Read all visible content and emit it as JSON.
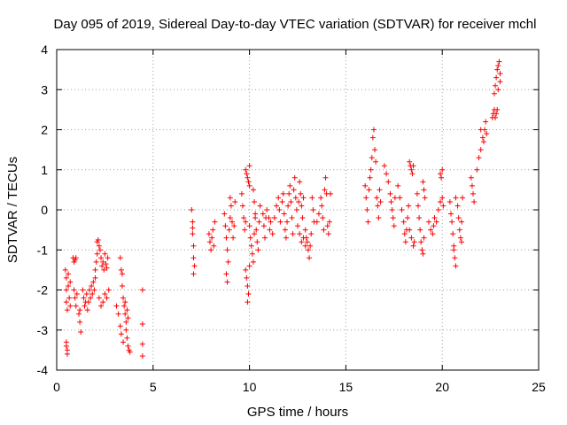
{
  "chart_data": {
    "type": "scatter",
    "title": "Day 095 of 2019, Sidereal Day-to-day VTEC variation (SDTVAR) for receiver mchl",
    "xlabel": "GPS time / hours",
    "ylabel": "SDTVAR / TECUs",
    "xlim": [
      0,
      25
    ],
    "ylim": [
      -4,
      4
    ],
    "xticks": [
      "0",
      "5",
      "10",
      "15",
      "20",
      "25"
    ],
    "yticks": [
      "-4",
      "-3",
      "-2",
      "-1",
      "0",
      "1",
      "2",
      "3",
      "4"
    ],
    "grid": true,
    "marker": "plus",
    "color": "#ff0000",
    "series": [
      {
        "name": "SDTVAR",
        "points": [
          [
            0.45,
            -1.5
          ],
          [
            0.5,
            -1.7
          ],
          [
            0.5,
            -2.0
          ],
          [
            0.5,
            -2.3
          ],
          [
            0.55,
            -2.5
          ],
          [
            0.5,
            -3.3
          ],
          [
            0.55,
            -3.5
          ],
          [
            0.55,
            -3.6
          ],
          [
            0.5,
            -3.4
          ],
          [
            0.6,
            -1.6
          ],
          [
            0.6,
            -1.9
          ],
          [
            0.65,
            -2.2
          ],
          [
            0.7,
            -2.4
          ],
          [
            0.7,
            -1.8
          ],
          [
            0.85,
            -1.2
          ],
          [
            0.9,
            -1.3
          ],
          [
            0.95,
            -1.25
          ],
          [
            1.0,
            -1.2
          ],
          [
            0.9,
            -2.0
          ],
          [
            0.95,
            -2.2
          ],
          [
            1.0,
            -2.4
          ],
          [
            1.05,
            -2.1
          ],
          [
            1.15,
            -2.6
          ],
          [
            1.2,
            -2.8
          ],
          [
            1.25,
            -3.05
          ],
          [
            1.2,
            -2.5
          ],
          [
            1.35,
            -2.0
          ],
          [
            1.4,
            -2.2
          ],
          [
            1.45,
            -2.4
          ],
          [
            1.5,
            -2.3
          ],
          [
            1.55,
            -2.1
          ],
          [
            1.6,
            -2.5
          ],
          [
            1.65,
            -2.3
          ],
          [
            1.7,
            -2.0
          ],
          [
            1.75,
            -2.2
          ],
          [
            1.8,
            -1.9
          ],
          [
            1.85,
            -2.1
          ],
          [
            1.9,
            -1.8
          ],
          [
            1.95,
            -2.0
          ],
          [
            2.0,
            -1.7
          ],
          [
            2.0,
            -1.5
          ],
          [
            2.05,
            -1.3
          ],
          [
            2.1,
            -1.1
          ],
          [
            2.1,
            -0.8
          ],
          [
            2.15,
            -0.75
          ],
          [
            2.2,
            -0.9
          ],
          [
            2.25,
            -1.0
          ],
          [
            2.3,
            -1.2
          ],
          [
            2.35,
            -1.4
          ],
          [
            2.4,
            -1.3
          ],
          [
            2.45,
            -1.5
          ],
          [
            2.5,
            -1.1
          ],
          [
            2.55,
            -1.35
          ],
          [
            2.6,
            -1.45
          ],
          [
            2.65,
            -1.2
          ],
          [
            2.2,
            -2.2
          ],
          [
            2.3,
            -2.4
          ],
          [
            2.4,
            -2.3
          ],
          [
            2.5,
            -2.1
          ],
          [
            2.6,
            -2.2
          ],
          [
            2.7,
            -2.0
          ],
          [
            3.3,
            -1.2
          ],
          [
            3.35,
            -1.5
          ],
          [
            3.4,
            -1.6
          ],
          [
            3.4,
            -1.9
          ],
          [
            3.45,
            -2.2
          ],
          [
            3.5,
            -2.4
          ],
          [
            3.55,
            -2.6
          ],
          [
            3.6,
            -2.8
          ],
          [
            3.6,
            -3.0
          ],
          [
            3.65,
            -3.2
          ],
          [
            3.7,
            -3.4
          ],
          [
            3.75,
            -3.5
          ],
          [
            3.8,
            -3.55
          ],
          [
            3.1,
            -2.4
          ],
          [
            3.2,
            -2.6
          ],
          [
            3.3,
            -2.9
          ],
          [
            3.35,
            -3.1
          ],
          [
            3.45,
            -3.3
          ],
          [
            3.55,
            -2.3
          ],
          [
            3.65,
            -2.5
          ],
          [
            3.7,
            -2.7
          ],
          [
            4.45,
            -2.0
          ],
          [
            4.45,
            -2.85
          ],
          [
            4.45,
            -3.35
          ],
          [
            4.45,
            -3.65
          ],
          [
            7.0,
            0.0
          ],
          [
            7.05,
            -0.3
          ],
          [
            7.05,
            -0.6
          ],
          [
            7.1,
            -0.9
          ],
          [
            7.1,
            -1.2
          ],
          [
            7.15,
            -1.4
          ],
          [
            7.1,
            -1.6
          ],
          [
            7.05,
            -0.45
          ],
          [
            7.9,
            -0.6
          ],
          [
            7.95,
            -0.8
          ],
          [
            8.0,
            -1.0
          ],
          [
            8.05,
            -0.7
          ],
          [
            8.1,
            -0.5
          ],
          [
            8.15,
            -0.9
          ],
          [
            8.2,
            -0.3
          ],
          [
            8.7,
            -0.1
          ],
          [
            8.75,
            -0.4
          ],
          [
            8.8,
            -0.7
          ],
          [
            8.85,
            -1.0
          ],
          [
            8.9,
            -1.3
          ],
          [
            8.95,
            -0.5
          ],
          [
            9.0,
            -0.2
          ],
          [
            9.0,
            0.3
          ],
          [
            9.05,
            0.1
          ],
          [
            9.1,
            -0.3
          ],
          [
            9.15,
            -0.7
          ],
          [
            9.2,
            -0.4
          ],
          [
            9.25,
            0.2
          ],
          [
            8.8,
            -1.6
          ],
          [
            8.85,
            -1.8
          ],
          [
            9.6,
            0.4
          ],
          [
            9.65,
            0.1
          ],
          [
            9.7,
            -0.2
          ],
          [
            9.75,
            -0.5
          ],
          [
            9.8,
            -0.3
          ],
          [
            9.8,
            -1.5
          ],
          [
            9.85,
            -1.7
          ],
          [
            9.9,
            -1.9
          ],
          [
            9.95,
            -2.1
          ],
          [
            9.9,
            -2.3
          ],
          [
            10.0,
            -1.4
          ],
          [
            9.8,
            1.0
          ],
          [
            9.85,
            0.9
          ],
          [
            9.9,
            0.8
          ],
          [
            9.95,
            0.7
          ],
          [
            10.0,
            1.1
          ],
          [
            10.0,
            0.6
          ],
          [
            10.0,
            -0.4
          ],
          [
            10.05,
            -0.7
          ],
          [
            10.1,
            -0.9
          ],
          [
            10.15,
            -1.1
          ],
          [
            10.2,
            -1.3
          ],
          [
            10.25,
            -0.6
          ],
          [
            10.3,
            -0.2
          ],
          [
            10.2,
            0.5
          ],
          [
            10.25,
            0.2
          ],
          [
            10.3,
            -0.1
          ],
          [
            10.35,
            -0.5
          ],
          [
            10.4,
            -0.8
          ],
          [
            10.45,
            -1.0
          ],
          [
            10.5,
            -0.3
          ],
          [
            10.55,
            0.1
          ],
          [
            10.7,
            -0.1
          ],
          [
            10.75,
            -0.4
          ],
          [
            10.8,
            -0.7
          ],
          [
            10.85,
            -0.2
          ],
          [
            10.9,
            0.0
          ],
          [
            11.0,
            -0.2
          ],
          [
            11.05,
            -0.5
          ],
          [
            11.1,
            -0.3
          ],
          [
            11.2,
            -0.6
          ],
          [
            11.3,
            -0.2
          ],
          [
            11.4,
            0.1
          ],
          [
            11.5,
            0.3
          ],
          [
            11.55,
            0.0
          ],
          [
            11.6,
            -0.3
          ],
          [
            11.7,
            0.2
          ],
          [
            11.75,
            0.4
          ],
          [
            11.8,
            -0.1
          ],
          [
            11.85,
            -0.5
          ],
          [
            11.9,
            -0.7
          ],
          [
            11.95,
            -0.3
          ],
          [
            12.0,
            0.1
          ],
          [
            12.05,
            0.4
          ],
          [
            12.1,
            0.6
          ],
          [
            12.15,
            0.2
          ],
          [
            12.2,
            -0.2
          ],
          [
            12.25,
            -0.6
          ],
          [
            12.3,
            0.5
          ],
          [
            12.35,
            0.8
          ],
          [
            12.4,
            0.3
          ],
          [
            12.45,
            0.0
          ],
          [
            12.5,
            -0.4
          ],
          [
            12.55,
            0.2
          ],
          [
            12.6,
            0.7
          ],
          [
            12.65,
            0.4
          ],
          [
            12.7,
            0.1
          ],
          [
            12.75,
            -0.2
          ],
          [
            12.8,
            0.3
          ],
          [
            12.9,
            -0.5
          ],
          [
            12.95,
            -0.7
          ],
          [
            13.0,
            -0.8
          ],
          [
            13.05,
            -1.0
          ],
          [
            13.1,
            -1.2
          ],
          [
            13.15,
            -0.9
          ],
          [
            13.2,
            -0.6
          ],
          [
            13.25,
            0.3
          ],
          [
            13.3,
            0.0
          ],
          [
            13.35,
            -0.3
          ],
          [
            12.6,
            -0.6
          ],
          [
            12.7,
            -0.8
          ],
          [
            12.8,
            -0.7
          ],
          [
            12.9,
            -0.9
          ],
          [
            13.5,
            -0.3
          ],
          [
            13.6,
            -0.1
          ],
          [
            13.7,
            0.3
          ],
          [
            13.75,
            0.1
          ],
          [
            13.8,
            -0.2
          ],
          [
            13.85,
            -0.5
          ],
          [
            13.9,
            0.5
          ],
          [
            13.95,
            0.8
          ],
          [
            14.0,
            0.4
          ],
          [
            14.05,
            -0.4
          ],
          [
            14.1,
            -0.6
          ],
          [
            14.15,
            -0.3
          ],
          [
            14.2,
            0.4
          ],
          [
            16.0,
            0.6
          ],
          [
            16.05,
            0.3
          ],
          [
            16.1,
            0.0
          ],
          [
            16.15,
            -0.3
          ],
          [
            16.2,
            0.5
          ],
          [
            16.25,
            0.8
          ],
          [
            16.3,
            1.0
          ],
          [
            16.35,
            1.3
          ],
          [
            16.4,
            1.8
          ],
          [
            16.45,
            2.0
          ],
          [
            16.5,
            1.5
          ],
          [
            16.55,
            1.2
          ],
          [
            16.6,
            0.3
          ],
          [
            16.65,
            0.1
          ],
          [
            16.7,
            -0.2
          ],
          [
            16.75,
            0.5
          ],
          [
            16.8,
            0.2
          ],
          [
            17.0,
            1.1
          ],
          [
            17.1,
            0.9
          ],
          [
            17.2,
            0.7
          ],
          [
            17.3,
            0.4
          ],
          [
            17.35,
            0.2
          ],
          [
            17.4,
            0.0
          ],
          [
            17.45,
            -0.2
          ],
          [
            17.5,
            -0.4
          ],
          [
            17.55,
            0.3
          ],
          [
            17.7,
            0.6
          ],
          [
            17.8,
            0.3
          ],
          [
            17.9,
            0.0
          ],
          [
            18.0,
            -0.3
          ],
          [
            18.05,
            -0.6
          ],
          [
            18.1,
            -0.8
          ],
          [
            18.15,
            -0.5
          ],
          [
            18.2,
            -0.2
          ],
          [
            18.25,
            0.1
          ],
          [
            18.3,
            1.2
          ],
          [
            18.35,
            1.1
          ],
          [
            18.4,
            1.0
          ],
          [
            18.45,
            0.9
          ],
          [
            18.5,
            1.1
          ],
          [
            18.3,
            -0.5
          ],
          [
            18.4,
            -0.7
          ],
          [
            18.5,
            -0.9
          ],
          [
            18.55,
            -0.8
          ],
          [
            18.7,
            0.4
          ],
          [
            18.75,
            0.1
          ],
          [
            18.8,
            -0.2
          ],
          [
            18.85,
            -0.5
          ],
          [
            18.9,
            -0.8
          ],
          [
            18.95,
            -1.0
          ],
          [
            19.0,
            -1.1
          ],
          [
            19.05,
            -0.7
          ],
          [
            19.0,
            0.7
          ],
          [
            19.05,
            0.5
          ],
          [
            19.1,
            0.3
          ],
          [
            19.3,
            -0.3
          ],
          [
            19.4,
            -0.5
          ],
          [
            19.5,
            -0.6
          ],
          [
            19.55,
            -0.4
          ],
          [
            19.6,
            -0.2
          ],
          [
            19.7,
            -0.3
          ],
          [
            19.8,
            0.0
          ],
          [
            19.9,
            0.2
          ],
          [
            20.0,
            0.3
          ],
          [
            20.05,
            0.1
          ],
          [
            19.9,
            0.9
          ],
          [
            20.0,
            1.0
          ],
          [
            19.95,
            0.8
          ],
          [
            20.4,
            0.2
          ],
          [
            20.45,
            -0.1
          ],
          [
            20.5,
            -0.3
          ],
          [
            20.55,
            -0.6
          ],
          [
            20.6,
            -0.9
          ],
          [
            20.65,
            -1.2
          ],
          [
            20.7,
            -1.4
          ],
          [
            20.6,
            -1.0
          ],
          [
            20.7,
            0.3
          ],
          [
            20.8,
            0.1
          ],
          [
            20.85,
            -0.2
          ],
          [
            20.9,
            -0.5
          ],
          [
            20.95,
            -0.7
          ],
          [
            21.0,
            -0.3
          ],
          [
            21.05,
            0.3
          ],
          [
            21.0,
            -0.8
          ],
          [
            21.5,
            0.8
          ],
          [
            21.55,
            0.6
          ],
          [
            21.6,
            0.4
          ],
          [
            21.65,
            0.2
          ],
          [
            21.8,
            1.0
          ],
          [
            21.9,
            1.3
          ],
          [
            22.0,
            1.5
          ],
          [
            22.0,
            2.0
          ],
          [
            22.1,
            1.8
          ],
          [
            22.15,
            1.7
          ],
          [
            22.2,
            2.0
          ],
          [
            22.25,
            2.2
          ],
          [
            22.3,
            1.9
          ],
          [
            22.6,
            2.3
          ],
          [
            22.65,
            2.4
          ],
          [
            22.7,
            2.5
          ],
          [
            22.75,
            2.3
          ],
          [
            22.8,
            2.4
          ],
          [
            22.85,
            2.5
          ],
          [
            22.7,
            2.9
          ],
          [
            22.75,
            3.1
          ],
          [
            22.8,
            3.3
          ],
          [
            22.85,
            3.5
          ],
          [
            22.9,
            3.6
          ],
          [
            22.95,
            3.7
          ],
          [
            23.0,
            3.4
          ],
          [
            23.0,
            3.2
          ],
          [
            22.9,
            3.0
          ]
        ]
      }
    ]
  }
}
